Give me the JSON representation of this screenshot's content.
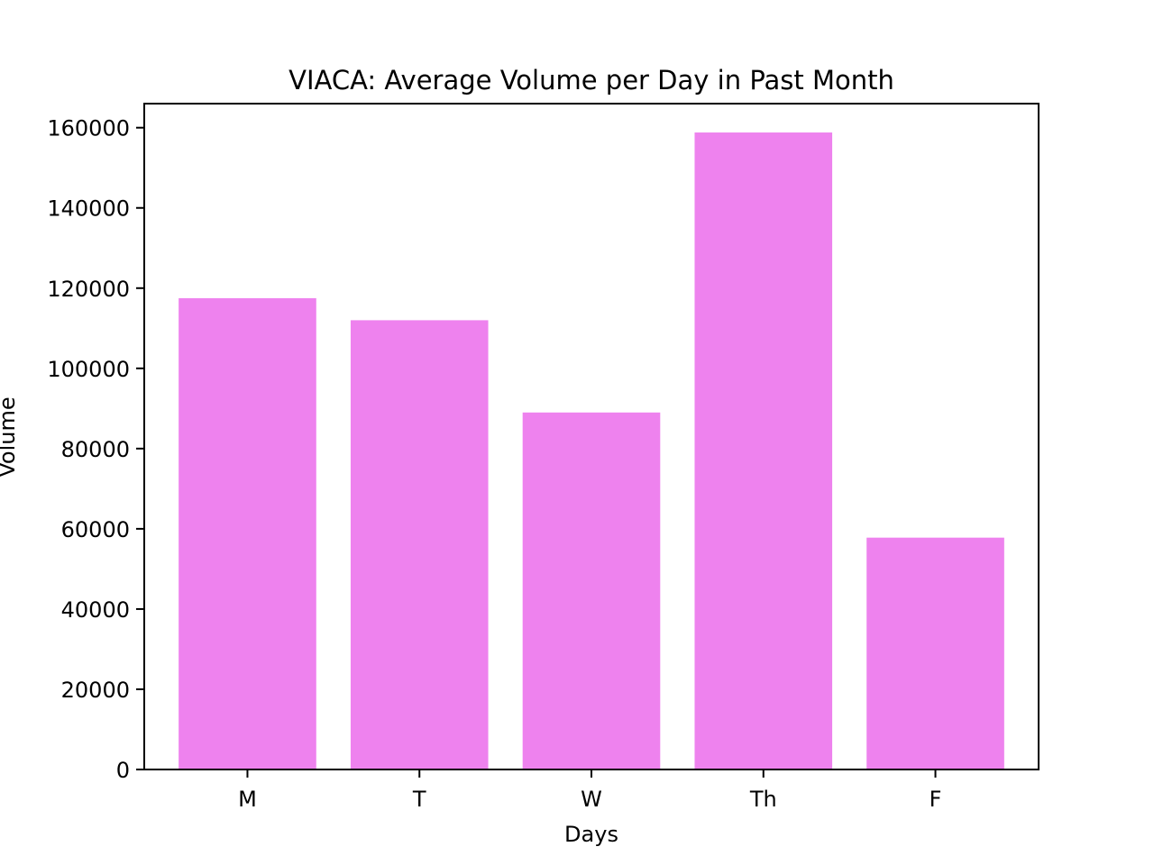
{
  "chart_data": {
    "type": "bar",
    "title": "VIACA: Average Volume per Day in Past Month",
    "xlabel": "Days",
    "ylabel": "Volume",
    "categories": [
      "M",
      "T",
      "W",
      "Th",
      "F"
    ],
    "values": [
      117500,
      112000,
      89000,
      158800,
      57800
    ],
    "ylim": [
      0,
      166000
    ],
    "yticks": [
      0,
      20000,
      40000,
      60000,
      80000,
      100000,
      120000,
      140000,
      160000
    ],
    "bar_color": "#ee82ee",
    "grid": false,
    "legend": "none"
  }
}
